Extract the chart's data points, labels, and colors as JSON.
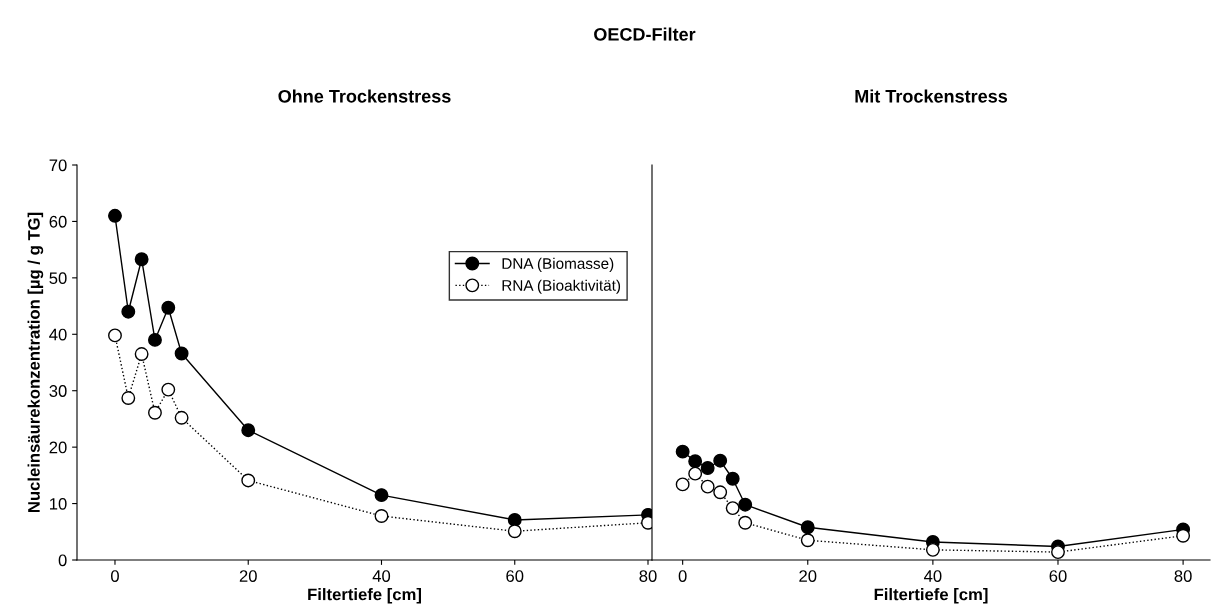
{
  "chart_data": [
    {
      "type": "line",
      "title": "Ohne Trockenstress",
      "annotations": [
        "OECD-Filter"
      ],
      "xlabel": "Filtertiefe [cm]",
      "ylabel": "Nucleinsäurekonzentration [µg / g TG]",
      "xlim": [
        -5.7,
        80.6
      ],
      "xticks": [
        0,
        20,
        40,
        60,
        80
      ],
      "ylim": [
        0,
        70
      ],
      "yticks": [
        0,
        10,
        20,
        30,
        40,
        50,
        60,
        70
      ],
      "marker": "circle",
      "legend": "top right",
      "x": [
        0,
        2,
        4,
        6,
        8,
        10,
        20,
        40,
        60,
        80
      ],
      "series": [
        {
          "name": "DNA (Biomasse)",
          "color": "#000000",
          "line_style": "solid",
          "values": [
            61,
            44,
            53.3,
            39,
            44.7,
            36.6,
            23,
            11.5,
            7.1,
            8
          ]
        },
        {
          "name": "RNA (Bioaktivität)",
          "color": "#000000",
          "line_style": "dotted",
          "values": [
            39.8,
            28.7,
            36.5,
            26.1,
            30.2,
            25.2,
            14.1,
            7.8,
            5.1,
            6.6
          ]
        }
      ]
    },
    {
      "type": "line",
      "title": "Mit Trockenstress",
      "xlabel": "Filtertiefe [cm]",
      "xlim": [
        -4.9,
        84.3
      ],
      "xticks": [
        0,
        20,
        40,
        60,
        80
      ],
      "ylim": [
        0,
        70
      ],
      "tick_labels": "x",
      "marker": "circle",
      "x": [
        0,
        2,
        4,
        6,
        8,
        10,
        20,
        40,
        60,
        80
      ],
      "series": [
        {
          "color": "#000000",
          "line_style": "solid",
          "values": [
            19.2,
            17.5,
            16.3,
            17.6,
            14.4,
            9.8,
            5.8,
            3.2,
            2.4,
            5.4
          ]
        },
        {
          "color": "#000000",
          "line_style": "dotted",
          "values": [
            13.4,
            15.3,
            13,
            12,
            9.2,
            6.6,
            3.5,
            1.8,
            1.4,
            4.3
          ]
        }
      ]
    }
  ]
}
